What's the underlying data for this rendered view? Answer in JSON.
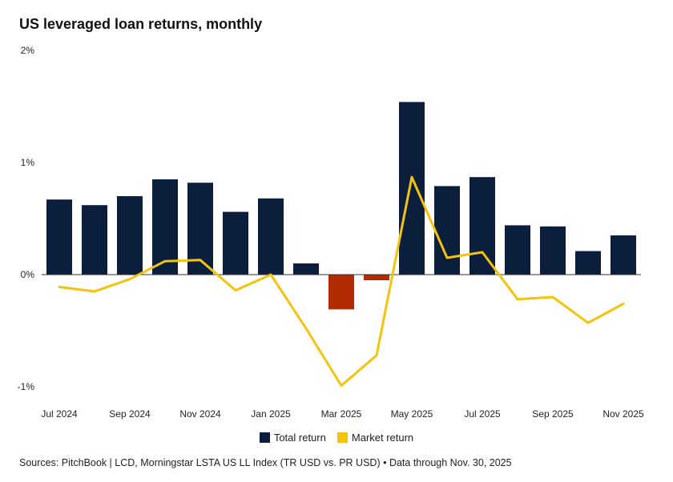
{
  "title": "US leveraged loan returns, monthly",
  "source": "Sources: PitchBook | LCD, Morningstar LSTA US LL Index (TR USD vs. PR USD) • Data through Nov. 30, 2025",
  "colors": {
    "total_positive": "#0b1f3c",
    "total_negative": "#b22a00",
    "market": "#f2c30f",
    "zero_line": "#333333"
  },
  "chart_data": {
    "type": "bar",
    "title": "US leveraged loan returns, monthly",
    "categories": [
      "Jul 2024",
      "Aug 2024",
      "Sep 2024",
      "Oct 2024",
      "Nov 2024",
      "Dec 2024",
      "Jan 2025",
      "Feb 2025",
      "Mar 2025",
      "Apr 2025",
      "May 2025",
      "Jun 2025",
      "Jul 2025",
      "Aug 2025",
      "Sep 2025",
      "Oct 2025",
      "Nov 2025"
    ],
    "x_tick_labels": [
      "Jul 2024",
      "",
      "Sep 2024",
      "",
      "Nov 2024",
      "",
      "Jan 2025",
      "",
      "Mar 2025",
      "",
      "May 2025",
      "",
      "Jul 2025",
      "",
      "Sep 2025",
      "",
      "Nov 2025"
    ],
    "series": [
      {
        "name": "Total return",
        "type": "bar",
        "values": [
          0.67,
          0.62,
          0.7,
          0.85,
          0.82,
          0.56,
          0.68,
          0.1,
          -0.31,
          -0.05,
          1.54,
          0.79,
          0.87,
          0.44,
          0.43,
          0.21,
          0.35
        ]
      },
      {
        "name": "Market return",
        "type": "line",
        "values": [
          -0.11,
          -0.15,
          -0.04,
          0.12,
          0.13,
          -0.14,
          0.0,
          -0.48,
          -0.99,
          -0.72,
          0.87,
          0.15,
          0.2,
          -0.22,
          -0.2,
          -0.43,
          -0.26
        ]
      }
    ],
    "ylim": [
      -1,
      2
    ],
    "y_ticks": [
      -1,
      0,
      1,
      2
    ],
    "y_tick_labels": [
      "-1%",
      "0%",
      "1%",
      "2%"
    ],
    "xlabel": "",
    "ylabel": "",
    "grid": false,
    "legend_position": "bottom-center"
  }
}
